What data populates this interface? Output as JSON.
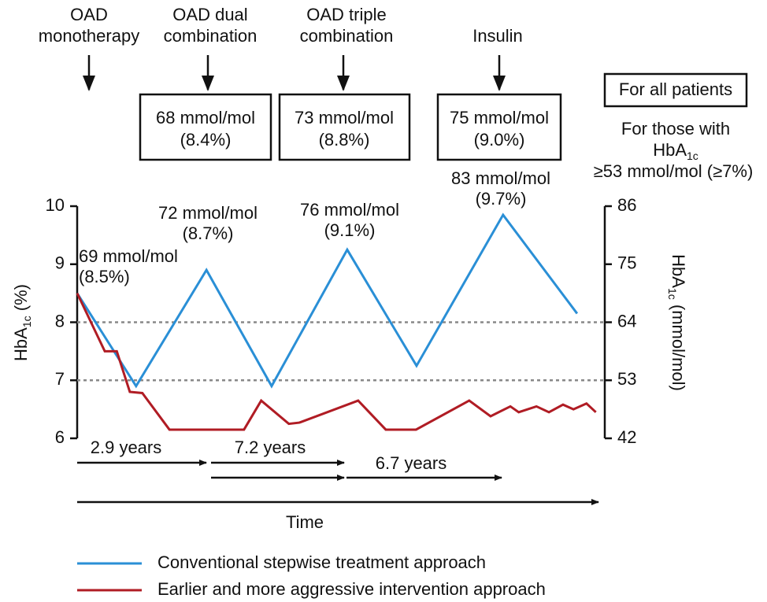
{
  "chart_data": {
    "type": "line",
    "xlim": [
      0,
      100
    ],
    "ylim": [
      6,
      10
    ],
    "yticks": [
      6,
      7,
      8,
      9,
      10
    ],
    "y2lim": [
      42,
      86
    ],
    "y2ticks": [
      42,
      53,
      64,
      75,
      86
    ],
    "y_label": [
      "HbA",
      "1c",
      " (%)"
    ],
    "y2_label": [
      "HbA",
      "1c",
      " (mmol/mol)"
    ],
    "x_label": "Time",
    "reference_lines": [
      8,
      7
    ],
    "series": [
      {
        "name": "Conventional stepwise treatment approach",
        "color": "#2a8fd6",
        "x": [
          0,
          11.3,
          24.8,
          37.3,
          51.8,
          65.1,
          81.7,
          95.9
        ],
        "values": [
          8.5,
          6.9,
          8.9,
          6.9,
          9.25,
          7.25,
          9.85,
          8.15
        ]
      },
      {
        "name": "Earlier and more aggressive intervention approach",
        "color": "#b01c24",
        "x": [
          0,
          5.3,
          7.6,
          10.1,
          12.5,
          17.7,
          32.0,
          35.3,
          40.6,
          42.6,
          53.9,
          59.2,
          65.0,
          75.2,
          79.3,
          83.1,
          84.7,
          88.1,
          90.5,
          93.2,
          95.2,
          97.7,
          99.5
        ],
        "values": [
          8.5,
          7.5,
          7.5,
          6.8,
          6.78,
          6.15,
          6.15,
          6.65,
          6.25,
          6.27,
          6.65,
          6.15,
          6.15,
          6.65,
          6.38,
          6.55,
          6.45,
          6.55,
          6.45,
          6.58,
          6.5,
          6.6,
          6.45
        ]
      }
    ],
    "annotations": [
      {
        "lines": [
          "69 mmol/mol",
          "(8.5%)"
        ]
      },
      {
        "lines": [
          "72 mmol/mol",
          "(8.7%)"
        ]
      },
      {
        "lines": [
          "76 mmol/mol",
          "(9.1%)"
        ]
      },
      {
        "lines": [
          "83 mmol/mol",
          "(9.7%)"
        ]
      }
    ],
    "treatment_steps": [
      {
        "label": [
          "OAD",
          "monotherapy"
        ]
      },
      {
        "label": [
          "OAD dual",
          "combination"
        ],
        "target": [
          "68 mmol/mol",
          "(8.4%)"
        ]
      },
      {
        "label": [
          "OAD triple",
          "combination"
        ],
        "target": [
          "73 mmol/mol",
          "(8.8%)"
        ]
      },
      {
        "label": [
          "Insulin"
        ],
        "target": [
          "75 mmol/mol",
          "(9.0%)"
        ]
      }
    ],
    "target_notes": {
      "all": "For all patients",
      "those": [
        "For those with",
        [
          "HbA",
          "1c"
        ],
        "≥53 mmol/mol (≥7%)"
      ]
    },
    "durations": [
      "2.9 years",
      "7.2 years",
      "6.7 years"
    ]
  }
}
